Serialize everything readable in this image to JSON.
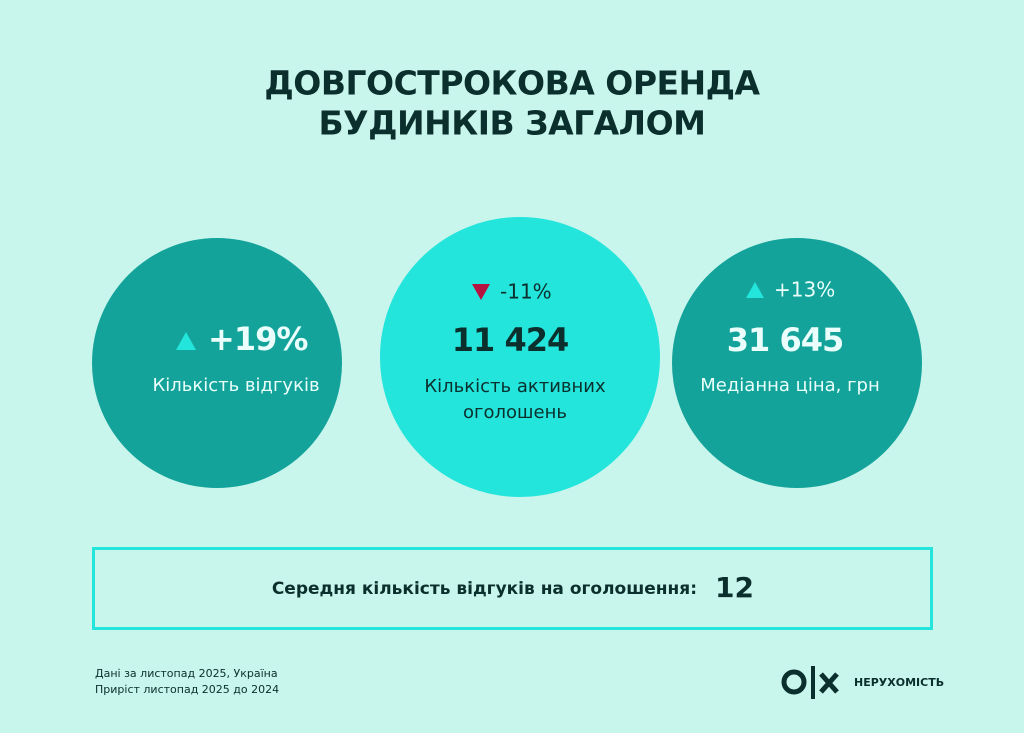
{
  "title": [
    "ДОВГОСТРОКОВА ОРЕНДА",
    "БУДИНКІВ ЗАГАЛОМ"
  ],
  "metrics": [
    {
      "change": "+19%",
      "label": [
        "Кількість відгуків"
      ]
    },
    {
      "change": "-11%",
      "value": "11 424",
      "label": [
        "Кількість активних",
        "оголошень"
      ]
    },
    {
      "change": "+13%",
      "value": "31 645",
      "label": [
        "Медіанна ціна, грн"
      ]
    }
  ],
  "summary": {
    "label": "Середня кількість відгуків на оголошення:",
    "value": "12"
  },
  "footnotes": [
    "Дані за листопад 2025, Україна",
    "Приріст листопад 2025 до 2024"
  ],
  "logo_text": "НЕРУХОМІСТЬ"
}
